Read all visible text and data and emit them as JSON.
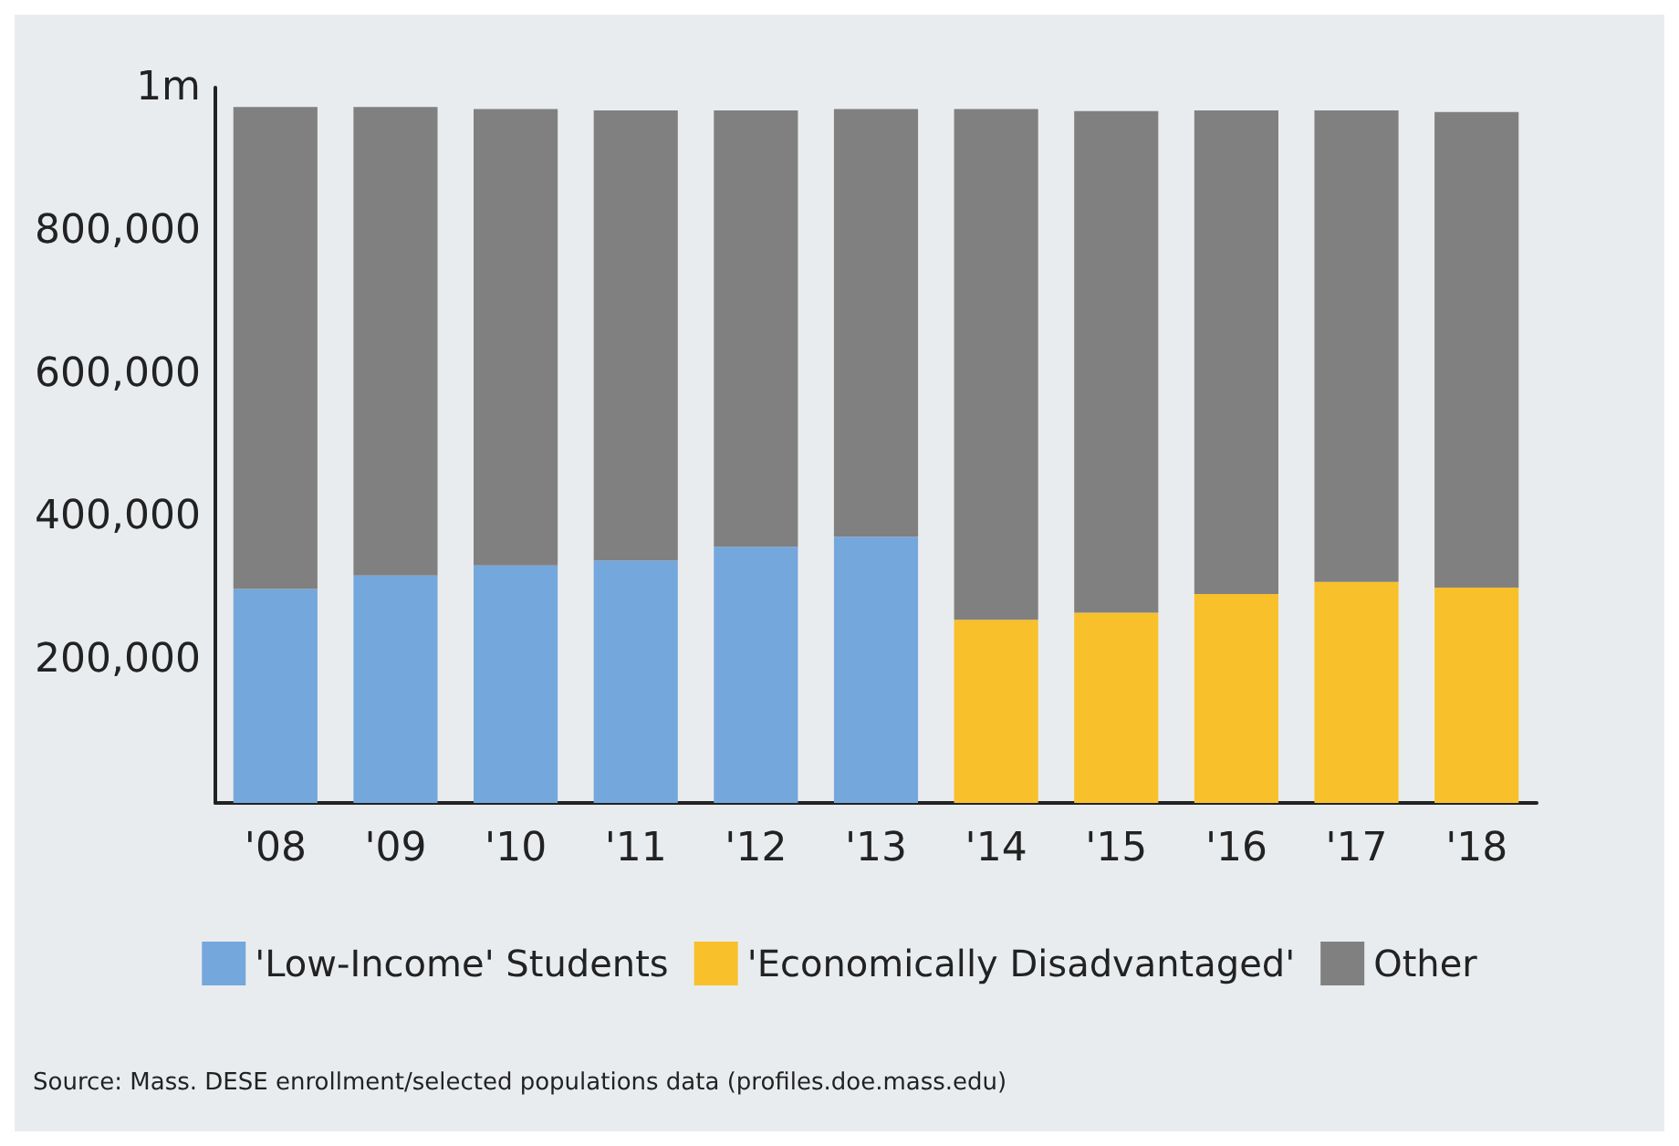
{
  "chart_data": {
    "type": "bar",
    "stacked": true,
    "categories": [
      "'08",
      "'09",
      "'10",
      "'11",
      "'12",
      "'13",
      "'14",
      "'15",
      "'16",
      "'17",
      "'18"
    ],
    "series": [
      {
        "name": "'Low-Income' Students",
        "color": "#74a7dc",
        "values": [
          299000,
          318000,
          332000,
          339000,
          358000,
          372000,
          null,
          null,
          null,
          null,
          null
        ]
      },
      {
        "name": "'Economically Disadvantaged'",
        "color": "#f8c02a",
        "values": [
          null,
          null,
          null,
          null,
          null,
          null,
          256000,
          266000,
          292000,
          309000,
          301000
        ]
      },
      {
        "name": "Other",
        "color": "#808080",
        "values": [
          674000,
          655000,
          638000,
          629000,
          610000,
          598000,
          714000,
          701000,
          676000,
          659000,
          665000
        ]
      }
    ],
    "ylim": [
      0,
      1000000
    ],
    "yticks": [
      {
        "value": 0,
        "label": null
      },
      {
        "value": 200000,
        "label": "200,000"
      },
      {
        "value": 400000,
        "label": "400,000"
      },
      {
        "value": 600000,
        "label": "600,000"
      },
      {
        "value": 800000,
        "label": "800,000"
      },
      {
        "value": 1000000,
        "label": "1m"
      }
    ],
    "grid": false,
    "legend": "bottom",
    "annotations": [
      "Source: Mass. DESE enrollment/selected populations data (profiles.doe.mass.edu)"
    ]
  }
}
